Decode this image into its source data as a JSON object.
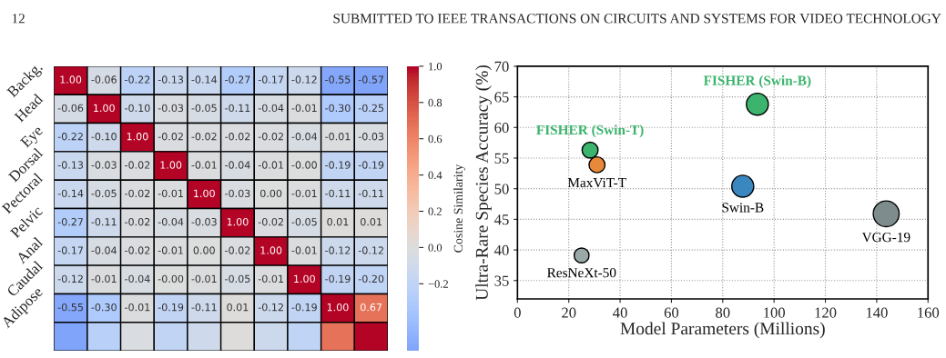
{
  "chart_data": [
    {
      "type": "heatmap",
      "categories": [
        null,
        null,
        null,
        null,
        null,
        null,
        null,
        null,
        null,
        null
      ],
      "y_categories": [
        "Backg.",
        "Head",
        "Eye",
        "Dorsal",
        "Pectoral",
        "Pelvic",
        "Anal",
        "Caudal",
        "Adipose",
        null
      ],
      "cells": [
        [
          1.0,
          -0.06,
          -0.22,
          -0.13,
          -0.14,
          -0.27,
          -0.17,
          -0.12,
          -0.55,
          -0.57
        ],
        [
          -0.06,
          1.0,
          -0.1,
          -0.03,
          -0.05,
          -0.11,
          -0.04,
          -0.01,
          -0.3,
          -0.25
        ],
        [
          -0.22,
          -0.1,
          1.0,
          -0.02,
          -0.02,
          -0.02,
          -0.02,
          -0.04,
          -0.01,
          -0.03
        ],
        [
          -0.13,
          -0.03,
          -0.02,
          1.0,
          -0.01,
          -0.04,
          -0.01,
          -0.0,
          -0.19,
          -0.19
        ],
        [
          -0.14,
          -0.05,
          -0.02,
          -0.01,
          1.0,
          -0.03,
          0.0,
          -0.01,
          -0.11,
          -0.11
        ],
        [
          -0.27,
          -0.11,
          -0.02,
          -0.04,
          -0.03,
          1.0,
          -0.02,
          -0.05,
          0.01,
          0.01
        ],
        [
          -0.17,
          -0.04,
          -0.02,
          -0.01,
          0.0,
          -0.02,
          1.0,
          -0.01,
          -0.12,
          -0.12
        ],
        [
          -0.12,
          -0.01,
          -0.04,
          -0.0,
          -0.01,
          -0.05,
          -0.01,
          1.0,
          -0.19,
          -0.2
        ],
        [
          -0.55,
          -0.3,
          -0.01,
          -0.19,
          -0.11,
          0.01,
          -0.12,
          -0.19,
          1.0,
          0.67
        ],
        [
          -0.57,
          -0.25,
          -0.03,
          -0.19,
          -0.11,
          0.01,
          -0.12,
          -0.2,
          0.67,
          1.0
        ]
      ],
      "cell_labels": [
        [
          "1.00",
          "-0.06",
          "-0.22",
          "-0.13",
          "-0.14",
          "-0.27",
          "-0.17",
          "-0.12",
          "-0.55",
          "-0.57"
        ],
        [
          "-0.06",
          "1.00",
          "-0.10",
          "-0.03",
          "-0.05",
          "-0.11",
          "-0.04",
          "-0.01",
          "-0.30",
          "-0.25"
        ],
        [
          "-0.22",
          "-0.10",
          "1.00",
          "-0.02",
          "-0.02",
          "-0.02",
          "-0.02",
          "-0.04",
          "-0.01",
          "-0.03"
        ],
        [
          "-0.13",
          "-0.03",
          "-0.02",
          "1.00",
          "-0.01",
          "-0.04",
          "-0.01",
          "-0.00",
          "-0.19",
          "-0.19"
        ],
        [
          "-0.14",
          "-0.05",
          "-0.02",
          "-0.01",
          "1.00",
          "-0.03",
          "0.00",
          "-0.01",
          "-0.11",
          "-0.11"
        ],
        [
          "-0.27",
          "-0.11",
          "-0.02",
          "-0.04",
          "-0.03",
          "1.00",
          "-0.02",
          "-0.05",
          "0.01",
          "0.01"
        ],
        [
          "-0.17",
          "-0.04",
          "-0.02",
          "-0.01",
          "0.00",
          "-0.02",
          "1.00",
          "-0.01",
          "-0.12",
          "-0.12"
        ],
        [
          "-0.12",
          "-0.01",
          "-0.04",
          "-0.00",
          "-0.01",
          "-0.05",
          "-0.01",
          "1.00",
          "-0.19",
          "-0.20"
        ],
        [
          "-0.55",
          "-0.30",
          "-0.01",
          "-0.19",
          "-0.11",
          "0.01",
          "-0.12",
          "-0.19",
          "1.00",
          "0.67"
        ],
        [
          null,
          null,
          null,
          null,
          null,
          null,
          null,
          null,
          null,
          null
        ]
      ],
      "clim": [
        -0.57,
        1.0
      ],
      "cticks": [
        {
          "value": -0.2,
          "label": "−0.2"
        },
        {
          "value": 0.0,
          "label": "0.0"
        },
        {
          "value": 0.2,
          "label": "0.2"
        },
        {
          "value": 0.4,
          "label": "0.4"
        },
        {
          "value": 0.6,
          "label": "0.6"
        },
        {
          "value": 0.8,
          "label": "0.8"
        },
        {
          "value": 1.0,
          "label": "1.0"
        }
      ],
      "clabel": "Cosine Similarity",
      "annotations": [
        "12",
        "SUBMITTED TO IEEE TRANSACTIONS ON CIRCUITS AND SYSTEMS FOR VIDEO TECHNOLOGY"
      ]
    },
    {
      "type": "bubble",
      "xlabel": "Model Parameters (Millions)",
      "ylabel": "Ultra-Rare Species Accuracy (%)",
      "xlim": [
        0,
        160
      ],
      "xticks": [
        0,
        20,
        40,
        60,
        80,
        100,
        120,
        140,
        160
      ],
      "ylim": [
        32,
        70
      ],
      "yticks": [
        35,
        40,
        45,
        50,
        55,
        60,
        65,
        70
      ],
      "grid": true,
      "series": [
        {
          "name": "FISHER (Swin-T)",
          "color": "#3cb46e",
          "x": [
            28.3
          ],
          "values": [
            56.3
          ],
          "sizes": [
            0.38
          ]
        },
        {
          "name": "MaxViT-T",
          "color": "#e8883a",
          "x": [
            31
          ],
          "values": [
            53.9
          ],
          "sizes": [
            0.38
          ]
        },
        {
          "name": "FISHER (Swin-B)",
          "color": "#3cb46e",
          "x": [
            93.5
          ],
          "values": [
            63.8
          ],
          "sizes": [
            0.72
          ]
        },
        {
          "name": "Swin-B",
          "color": "#3a87c0",
          "x": [
            87.8
          ],
          "values": [
            50.4
          ],
          "sizes": [
            0.72
          ]
        },
        {
          "name": "VGG-19",
          "color": "#7f8c8d",
          "x": [
            143.7
          ],
          "values": [
            45.9
          ],
          "sizes": [
            1
          ]
        },
        {
          "name": "ResNeXt-50",
          "color": "#9aa8a8",
          "x": [
            25
          ],
          "values": [
            39.1
          ],
          "sizes": [
            0.33
          ]
        }
      ]
    }
  ]
}
